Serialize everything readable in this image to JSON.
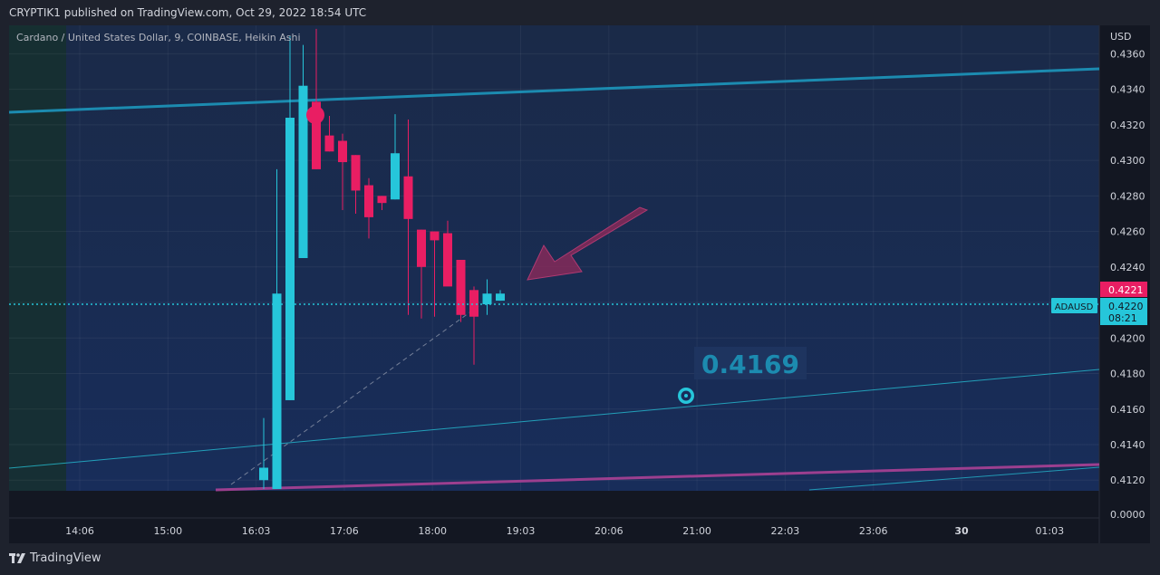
{
  "publish_line": "CRYPTIK1 published on TradingView.com, Oct 29, 2022 18:54 UTC",
  "footer_brand": "TradingView",
  "colors": {
    "up": "#26c6da",
    "down": "#e91e63",
    "trendline": "#1c8bb0",
    "channel_bottom": "#9c3f8f",
    "arrow": "#8e2a5a",
    "price_line": "#26c6da",
    "bg": "#131722"
  },
  "chart_data": {
    "type": "candlestick",
    "title": "Cardano / United States Dollar, 9, COINBASE, Heikin Ashi",
    "symbol": "ADAUSD",
    "y_unit_label": "USD",
    "ylim": [
      0.4114,
      0.4376
    ],
    "y_ticks": [
      "0.4360",
      "0.4340",
      "0.4320",
      "0.4300",
      "0.4280",
      "0.4260",
      "0.4240",
      "0.4220",
      "0.4200",
      "0.4180",
      "0.4160",
      "0.4140",
      "0.4120"
    ],
    "y_axis_zero_label": "0.0000",
    "x_ticks": [
      "14:06",
      "15:00",
      "16:03",
      "17:06",
      "18:00",
      "19:03",
      "20:06",
      "21:00",
      "22:03",
      "23:06",
      "30",
      "01:03"
    ],
    "x_bold_ticks": [
      "30"
    ],
    "candles": [
      {
        "open": 0.412,
        "high": 0.4155,
        "low": 0.4115,
        "close": 0.4127
      },
      {
        "open": 0.4115,
        "high": 0.4295,
        "low": 0.4115,
        "close": 0.4225
      },
      {
        "open": 0.4165,
        "high": 0.437,
        "low": 0.4165,
        "close": 0.4324
      },
      {
        "open": 0.4245,
        "high": 0.4365,
        "low": 0.4245,
        "close": 0.4342
      },
      {
        "open": 0.4333,
        "high": 0.4374,
        "low": 0.4295,
        "close": 0.4295
      },
      {
        "open": 0.4314,
        "high": 0.4325,
        "low": 0.4305,
        "close": 0.4305
      },
      {
        "open": 0.4311,
        "high": 0.4315,
        "low": 0.4272,
        "close": 0.4299
      },
      {
        "open": 0.4303,
        "high": 0.4303,
        "low": 0.427,
        "close": 0.4283
      },
      {
        "open": 0.4286,
        "high": 0.429,
        "low": 0.4256,
        "close": 0.4268
      },
      {
        "open": 0.428,
        "high": 0.428,
        "low": 0.4272,
        "close": 0.4276
      },
      {
        "open": 0.4278,
        "high": 0.4326,
        "low": 0.4278,
        "close": 0.4304
      },
      {
        "open": 0.4291,
        "high": 0.4323,
        "low": 0.4213,
        "close": 0.4267
      },
      {
        "open": 0.4261,
        "high": 0.4261,
        "low": 0.4211,
        "close": 0.424
      },
      {
        "open": 0.426,
        "high": 0.426,
        "low": 0.4212,
        "close": 0.4255
      },
      {
        "open": 0.4259,
        "high": 0.4266,
        "low": 0.423,
        "close": 0.4229
      },
      {
        "open": 0.4244,
        "high": 0.4244,
        "low": 0.4209,
        "close": 0.4213
      },
      {
        "open": 0.4227,
        "high": 0.4229,
        "low": 0.4185,
        "close": 0.4212
      },
      {
        "open": 0.4219,
        "high": 0.4233,
        "low": 0.4213,
        "close": 0.4225
      },
      {
        "open": 0.4221,
        "high": 0.4227,
        "low": 0.4221,
        "close": 0.4225
      }
    ],
    "last_price": "0.4220",
    "countdown": "08:21",
    "marker_price": "0.4221",
    "annotation_text": "0.4169"
  }
}
